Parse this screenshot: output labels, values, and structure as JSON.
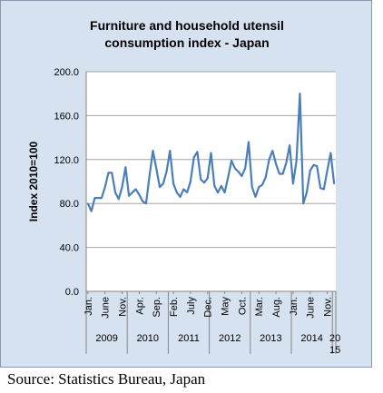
{
  "footer": {
    "source": "Source: Statistics Bureau, Japan"
  },
  "chart_data": {
    "type": "line",
    "title_lines": [
      "Furniture and household utensil",
      "consumption index - Japan"
    ],
    "ylabel": "Index 2010=100",
    "xlabel": "",
    "ylim": [
      0,
      200
    ],
    "yticks": [
      "0.0",
      "40.0",
      "80.0",
      "120.0",
      "160.0",
      "200.0"
    ],
    "grid": true,
    "legend": "none",
    "colors": {
      "line": "#4a7ebb",
      "plot_bg": "#ffffff",
      "frame_bg": "#d7e2f1",
      "grid": "#a6a6a6"
    },
    "month_tick_labels": [
      {
        "index": 0,
        "label": "Jan."
      },
      {
        "index": 5,
        "label": "June"
      },
      {
        "index": 10,
        "label": "Nov."
      },
      {
        "index": 15,
        "label": "Apr."
      },
      {
        "index": 20,
        "label": "Sep."
      },
      {
        "index": 25,
        "label": "Feb."
      },
      {
        "index": 30,
        "label": "July"
      },
      {
        "index": 35,
        "label": "Dec."
      },
      {
        "index": 40,
        "label": "May"
      },
      {
        "index": 45,
        "label": "Oct."
      },
      {
        "index": 50,
        "label": "Mar."
      },
      {
        "index": 55,
        "label": "Aug."
      },
      {
        "index": 60,
        "label": "Jan."
      },
      {
        "index": 65,
        "label": "June"
      },
      {
        "index": 70,
        "label": "Nov."
      }
    ],
    "year_groups": [
      {
        "label": "2009",
        "start": 0,
        "end": 11
      },
      {
        "label": "2010",
        "start": 12,
        "end": 23
      },
      {
        "label": "2011",
        "start": 24,
        "end": 35
      },
      {
        "label": "2012",
        "start": 36,
        "end": 47
      },
      {
        "label": "2013",
        "start": 48,
        "end": 59
      },
      {
        "label": "2014",
        "start": 60,
        "end": 71
      },
      {
        "label": "20 15",
        "start": 72,
        "end": 72
      }
    ],
    "series": [
      {
        "values": [
          80,
          73,
          85,
          85,
          85,
          95,
          108,
          108,
          90,
          84,
          95,
          113,
          87,
          90,
          93,
          88,
          82,
          80,
          105,
          128,
          112,
          95,
          98,
          109,
          128,
          98,
          90,
          86,
          93,
          90,
          100,
          122,
          127,
          102,
          99,
          103,
          126,
          96,
          90,
          96,
          90,
          104,
          119,
          112,
          109,
          105,
          112,
          136,
          95,
          86,
          95,
          97,
          104,
          120,
          128,
          116,
          107,
          107,
          117,
          133,
          98,
          119,
          180,
          80,
          90,
          110,
          115,
          114,
          94,
          93,
          110,
          126,
          98
        ]
      }
    ]
  }
}
